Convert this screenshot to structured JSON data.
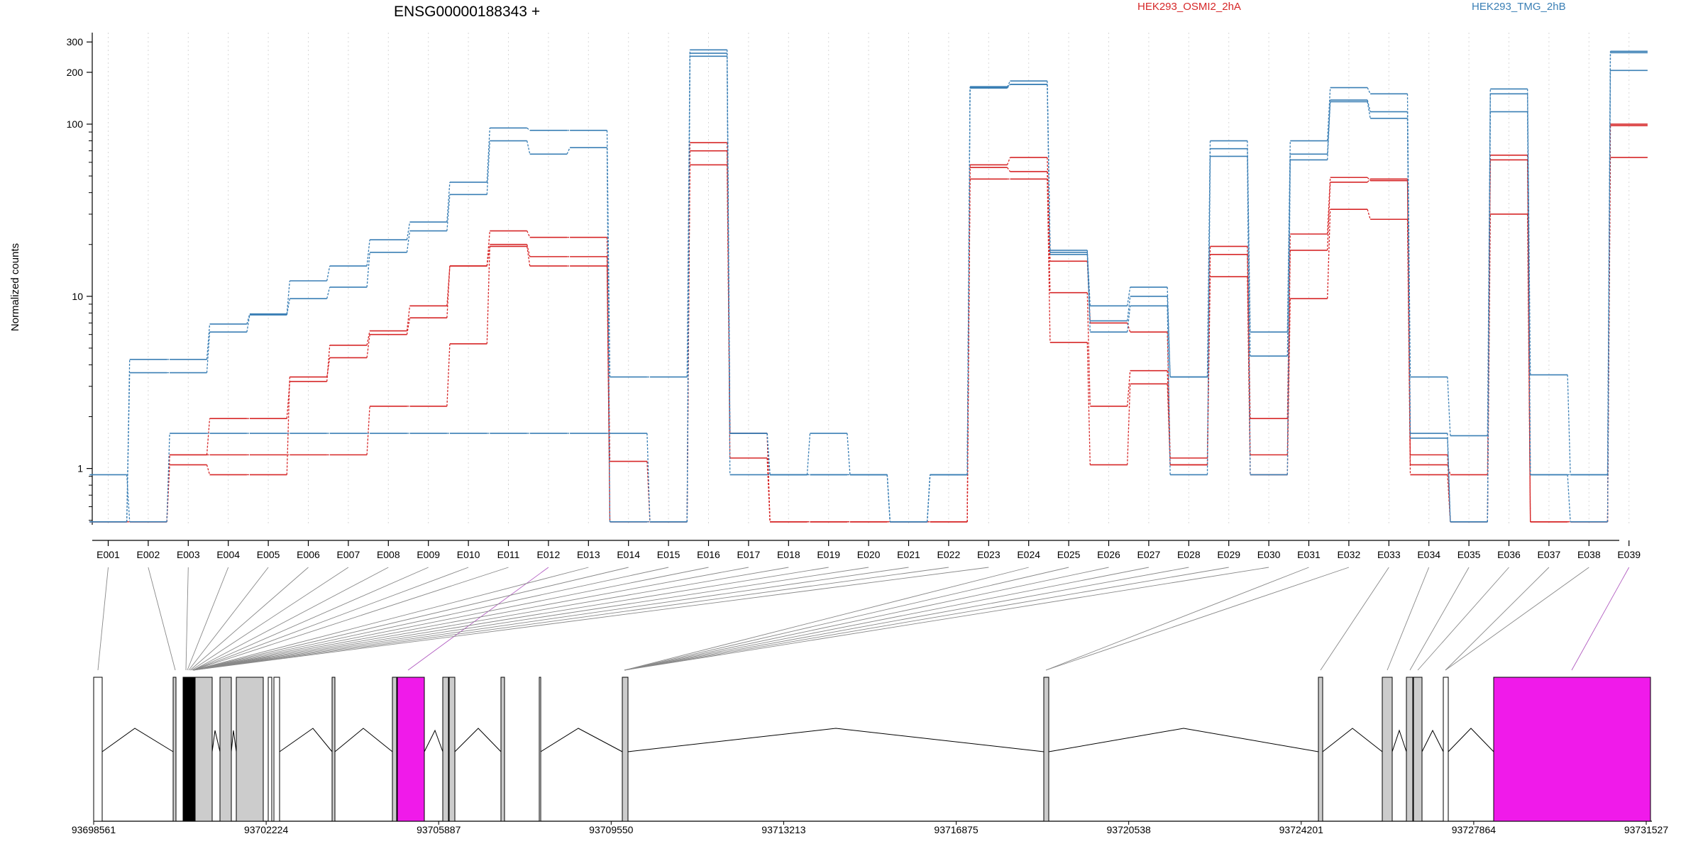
{
  "chart_data": {
    "type": "line",
    "title": "ENSG00000188343 +",
    "ylabel": "Normalized counts",
    "y_scale": "log",
    "ylim": [
      0.48,
      340
    ],
    "yticks": [
      1,
      10,
      100,
      200,
      300
    ],
    "grid": "vertical dotted lines at exon bins",
    "legend": [
      {
        "name": "HEK293_OSMI2_2hA",
        "color": "#d62728"
      },
      {
        "name": "HEK293_TMG_2hB",
        "color": "#3a7fb5"
      }
    ],
    "categories": [
      "E001",
      "E002",
      "E003",
      "E004",
      "E005",
      "E006",
      "E007",
      "E008",
      "E009",
      "E010",
      "E011",
      "E012",
      "E013",
      "E014",
      "E015",
      "E016",
      "E017",
      "E018",
      "E019",
      "E020",
      "E021",
      "E022",
      "E023",
      "E024",
      "E025",
      "E026",
      "E027",
      "E028",
      "E029",
      "E030",
      "E031",
      "E032",
      "E033",
      "E034",
      "E035",
      "E036",
      "E037",
      "E038",
      "E039"
    ],
    "series": [
      {
        "group": "HEK293_OSMI2_2hA",
        "color": "#d62728",
        "values": [
          0.49,
          0.49,
          1.2,
          1.95,
          1.95,
          3.2,
          5.2,
          6.3,
          8.8,
          15,
          24,
          22,
          22,
          1.1,
          0.49,
          78,
          1.6,
          0.49,
          0.49,
          0.49,
          0.49,
          0.49,
          58,
          64,
          16,
          7,
          6.2,
          1.15,
          19.5,
          1.95,
          23,
          49,
          47,
          1.2,
          0.49,
          66,
          0.49,
          0.49,
          100
        ]
      },
      {
        "group": "HEK293_OSMI2_2hA",
        "color": "#d62728",
        "values": [
          0.49,
          0.49,
          1.2,
          1.2,
          1.2,
          1.2,
          1.2,
          2.3,
          2.3,
          5.3,
          20,
          17,
          17,
          0.49,
          0.49,
          70,
          1.15,
          0.49,
          0.49,
          0.49,
          0.49,
          0.49,
          56,
          53,
          10.5,
          2.3,
          3.7,
          1.05,
          17.5,
          1.2,
          18.5,
          46,
          48,
          1.05,
          0.92,
          62,
          0.49,
          0.49,
          98
        ]
      },
      {
        "group": "HEK293_OSMI2_2hA",
        "color": "#d62728",
        "values": [
          0.49,
          0.49,
          1.05,
          0.92,
          0.92,
          3.4,
          4.4,
          6,
          7.5,
          15,
          19.5,
          15,
          15,
          0.49,
          0.49,
          58,
          1.6,
          0.49,
          0.49,
          0.49,
          0.49,
          0.49,
          48,
          48,
          5.4,
          1.05,
          3.1,
          1.05,
          13,
          0.92,
          9.7,
          32,
          28,
          0.92,
          0.49,
          30,
          0.49,
          0.49,
          64
        ]
      },
      {
        "group": "HEK293_TMG_2hB",
        "color": "#3a7fb5",
        "values": [
          0.92,
          0.49,
          1.6,
          1.6,
          1.6,
          1.6,
          1.6,
          1.6,
          1.6,
          1.6,
          1.6,
          1.6,
          1.6,
          1.6,
          0.49,
          270,
          1.6,
          0.92,
          0.92,
          0.92,
          0.49,
          0.92,
          165,
          170,
          18.5,
          8.8,
          11.3,
          3.4,
          80,
          6.2,
          80,
          163,
          150,
          3.4,
          1.55,
          160,
          3.5,
          0.92,
          265
        ]
      },
      {
        "group": "HEK293_TMG_2hB",
        "color": "#3a7fb5",
        "values": [
          0.49,
          4.3,
          4.3,
          6.9,
          7.9,
          12.3,
          15,
          21.3,
          27,
          46,
          95,
          92,
          92,
          3.4,
          3.4,
          258,
          1.6,
          0.92,
          1.6,
          0.92,
          0.49,
          0.92,
          164,
          178,
          18,
          7.2,
          10,
          3.4,
          72,
          4.5,
          67,
          138,
          118,
          1.6,
          0.49,
          150,
          0.92,
          0.92,
          260
        ]
      },
      {
        "group": "HEK293_TMG_2hB",
        "color": "#3a7fb5",
        "values": [
          0.49,
          3.6,
          3.6,
          6.2,
          7.8,
          9.7,
          11.3,
          18,
          24,
          39,
          80,
          67,
          73,
          0.49,
          0.49,
          248,
          0.92,
          0.92,
          0.92,
          0.92,
          0.49,
          0.92,
          162,
          170,
          17.5,
          6.2,
          8.8,
          0.92,
          65,
          0.92,
          62,
          135,
          108,
          1.5,
          0.49,
          118,
          0.92,
          0.49,
          205
        ]
      }
    ],
    "genomic_ticks": [
      "93698561",
      "93702224",
      "93705887",
      "93709550",
      "93713213",
      "93716875",
      "93720538",
      "93724201",
      "93727864",
      "93731527"
    ],
    "highlighted_exons": [
      "E012",
      "E039"
    ],
    "colors": {
      "highlight": "#f01aea",
      "exon": "#cccccc",
      "intron": "#000000",
      "connector": "#888888"
    }
  }
}
